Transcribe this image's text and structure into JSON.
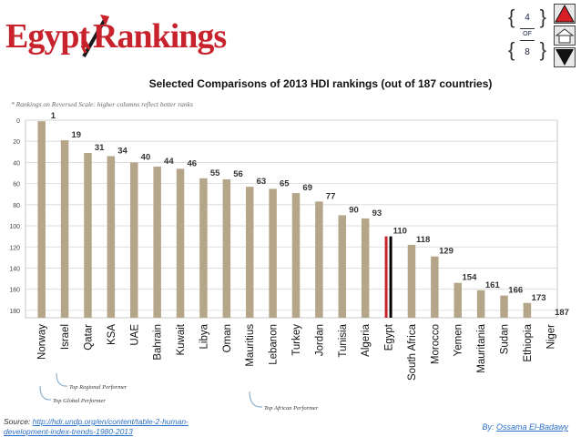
{
  "header": {
    "logo_left": "Egypt",
    "logo_right": "Rankings",
    "page_current": "4",
    "page_of": "OF",
    "page_total": "8"
  },
  "icons": {
    "prev": "up-triangle-icon",
    "home": "home-icon",
    "next": "down-triangle-icon"
  },
  "chart_data": {
    "type": "bar",
    "title": "Selected Comparisons of 2013 HDI rankings (out of 187 countries)",
    "subtitle": "* Rankings on Reversed Scale: higher columns reflect better ranks",
    "categories": [
      "Norway",
      "Israel",
      "Qatar",
      "KSA",
      "UAE",
      "Bahrain",
      "Kuwait",
      "Libya",
      "Oman",
      "Mauritius",
      "Lebanon",
      "Turkey",
      "Jordan",
      "Tunisia",
      "Algeria",
      "Egypt",
      "South Africa",
      "Morocco",
      "Yemen",
      "Mauritania",
      "Sudan",
      "Ethiopia",
      "Niger"
    ],
    "values": [
      1,
      19,
      31,
      34,
      40,
      44,
      46,
      55,
      56,
      63,
      65,
      69,
      77,
      90,
      93,
      110,
      118,
      129,
      154,
      161,
      166,
      173,
      187
    ],
    "highlight": "Egypt",
    "y_reversed": true,
    "ylim": [
      0,
      187
    ],
    "yticks": [
      0,
      20,
      40,
      60,
      80,
      100,
      120,
      140,
      160,
      180
    ],
    "grid": true,
    "bar_color": "#b5a68a",
    "highlight_colors": [
      "#c8232c",
      "#000000"
    ],
    "annotations": [
      {
        "text": "Top Global Performer",
        "target": "Norway"
      },
      {
        "text": "Top Regional Performer",
        "target": "Israel"
      },
      {
        "text": "Top African Performer",
        "target": "Mauritius"
      }
    ]
  },
  "footer": {
    "source_label": "Source:",
    "source_link_line1": "http://hdr.undp.org/en/content/table-2-human-",
    "source_link_line2": "development-index-trends-1980-2013",
    "by_label": "By:",
    "author": "Ossama El-Badawy"
  }
}
